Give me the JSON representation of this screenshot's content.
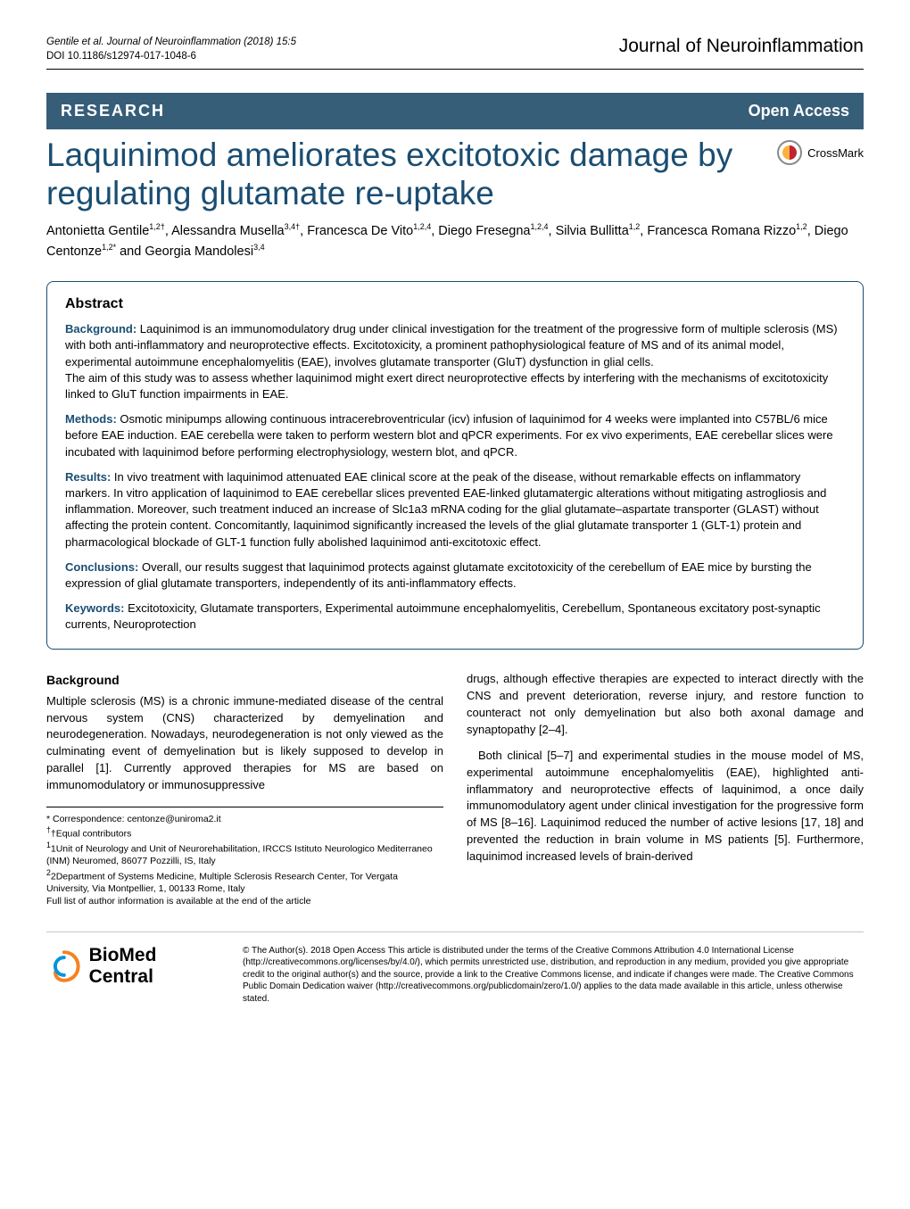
{
  "header": {
    "citation_line1": "Gentile et al. Journal of Neuroinflammation  (2018) 15:5",
    "citation_line2": "DOI 10.1186/s12974-017-1048-6",
    "journal": "Journal of Neuroinflammation"
  },
  "tagbar": {
    "research": "RESEARCH",
    "open_access": "Open Access"
  },
  "title": "Laquinimod ameliorates excitotoxic damage by regulating glutamate re-uptake",
  "crossmark_label": "CrossMark",
  "authors_html": "Antonietta Gentile<sup>1,2†</sup>, Alessandra Musella<sup>3,4†</sup>, Francesca De Vito<sup>1,2,4</sup>, Diego Fresegna<sup>1,2,4</sup>, Silvia Bullitta<sup>1,2</sup>, Francesca Romana Rizzo<sup>1,2</sup>, Diego Centonze<sup>1,2*</sup> and Georgia Mandolesi<sup>3,4</sup>",
  "abstract": {
    "heading": "Abstract",
    "background_label": "Background:",
    "background_text": " Laquinimod is an immunomodulatory drug under clinical investigation for the treatment of the progressive form of multiple sclerosis (MS) with both anti-inflammatory and neuroprotective effects. Excitotoxicity, a prominent pathophysiological feature of MS and of its animal model, experimental autoimmune encephalomyelitis (EAE), involves glutamate transporter (GluT) dysfunction in glial cells.",
    "background_text2": "The aim of this study was to assess whether laquinimod might exert direct neuroprotective effects by interfering with the mechanisms of excitotoxicity linked to GluT function impairments in EAE.",
    "methods_label": "Methods:",
    "methods_text": " Osmotic minipumps allowing continuous intracerebroventricular (icv) infusion of laquinimod for 4 weeks were implanted into C57BL/6 mice before EAE induction. EAE cerebella were taken to perform western blot and qPCR experiments. For ex vivo experiments, EAE cerebellar slices were incubated with laquinimod before performing electrophysiology, western blot, and qPCR.",
    "results_label": "Results:",
    "results_text": " In vivo treatment with laquinimod attenuated EAE clinical score at the peak of the disease, without remarkable effects on inflammatory markers. In vitro application of laquinimod to EAE cerebellar slices prevented EAE-linked glutamatergic alterations without mitigating astrogliosis and inflammation. Moreover, such treatment induced an increase of Slc1a3 mRNA coding for the glial glutamate–aspartate transporter (GLAST) without affecting the protein content. Concomitantly, laquinimod significantly increased the levels of the glial glutamate transporter 1 (GLT-1) protein and pharmacological blockade of GLT-1 function fully abolished laquinimod anti-excitotoxic effect.",
    "conclusions_label": "Conclusions:",
    "conclusions_text": " Overall, our results suggest that laquinimod protects against glutamate excitotoxicity of the cerebellum of EAE mice by bursting the expression of glial glutamate transporters, independently of its anti-inflammatory effects.",
    "keywords_label": "Keywords:",
    "keywords_text": " Excitotoxicity, Glutamate transporters, Experimental autoimmune encephalomyelitis, Cerebellum, Spontaneous excitatory post-synaptic currents, Neuroprotection"
  },
  "body": {
    "heading": "Background",
    "p1": "Multiple sclerosis (MS) is a chronic immune-mediated disease of the central nervous system (CNS) characterized by demyelination and neurodegeneration. Nowadays, neurodegeneration is not only viewed as the culminating event of demyelination but is likely supposed to develop in parallel [1]. Currently approved therapies for MS are based on immunomodulatory or immunosuppressive",
    "p2": "drugs, although effective therapies are expected to interact directly with the CNS and prevent deterioration, reverse injury, and restore function to counteract not only demyelination but also both axonal damage and synaptopathy [2–4].",
    "p3": "Both clinical [5–7] and experimental studies in the mouse model of MS, experimental autoimmune encephalomyelitis (EAE), highlighted anti-inflammatory and neuroprotective effects of laquinimod, a once daily immunomodulatory agent under clinical investigation for the progressive form of MS [8–16]. Laquinimod reduced the number of active lesions [17, 18] and prevented the reduction in brain volume in MS patients [5]. Furthermore, laquinimod increased levels of brain-derived"
  },
  "footnotes": {
    "correspondence": "* Correspondence: centonze@uniroma2.it",
    "equal": "†Equal contributors",
    "aff1": "1Unit of Neurology and Unit of Neurorehabilitation, IRCCS Istituto Neurologico Mediterraneo (INM) Neuromed, 86077 Pozzilli, IS, Italy",
    "aff2": "2Department of Systems Medicine, Multiple Sclerosis Research Center, Tor Vergata University, Via Montpellier, 1, 00133 Rome, Italy",
    "full": "Full list of author information is available at the end of the article"
  },
  "footer": {
    "bmc": "BioMed Central",
    "license": "© The Author(s). 2018 Open Access This article is distributed under the terms of the Creative Commons Attribution 4.0 International License (http://creativecommons.org/licenses/by/4.0/), which permits unrestricted use, distribution, and reproduction in any medium, provided you give appropriate credit to the original author(s) and the source, provide a link to the Creative Commons license, and indicate if changes were made. The Creative Commons Public Domain Dedication waiver (http://creativecommons.org/publicdomain/zero/1.0/) applies to the data made available in this article, unless otherwise stated."
  },
  "colors": {
    "brand_blue": "#1a4d72",
    "tagbar_bg": "#375e79",
    "bmc_orange": "#f58220",
    "bmc_blue": "#0096d6"
  }
}
